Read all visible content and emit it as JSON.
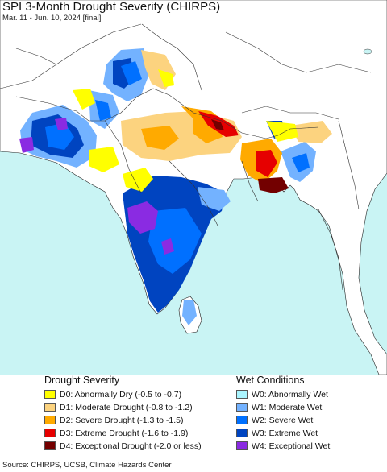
{
  "title": "SPI 3-Month Drought Severity (CHIRPS)",
  "subtitle": "Mar. 11 - Jun. 10, 2024 [final]",
  "colors": {
    "ocean": "#c9f4f4",
    "land_outside": "#ffffff",
    "normal": "#ffffff",
    "d0": "#ffff00",
    "d1": "#fcd37f",
    "d2": "#ffaa00",
    "d3": "#e60000",
    "d4": "#730000",
    "w0": "#aaf5ff",
    "w1": "#73b2ff",
    "w2": "#0070ff",
    "w3": "#0044c0",
    "w4": "#8a2be2"
  },
  "legend": {
    "drought": {
      "heading": "Drought Severity",
      "items": [
        {
          "label": "D0: Abnormally Dry (-0.5 to -0.7)",
          "color": "#ffff00"
        },
        {
          "label": "D1: Moderate Drought (-0.8 to -1.2)",
          "color": "#fcd37f"
        },
        {
          "label": "D2: Severe Drought (-1.3 to -1.5)",
          "color": "#ffaa00"
        },
        {
          "label": "D3: Extreme Drought (-1.6 to -1.9)",
          "color": "#e60000"
        },
        {
          "label": "D4: Exceptional Drought (-2.0 or less)",
          "color": "#730000"
        }
      ]
    },
    "wet": {
      "heading": "Wet Conditions",
      "items": [
        {
          "label": "W0: Abnormally Wet",
          "color": "#aaf5ff"
        },
        {
          "label": "W1: Moderate Wet",
          "color": "#73b2ff"
        },
        {
          "label": "W2: Severe Wet",
          "color": "#0070ff"
        },
        {
          "label": "W3: Extreme Wet",
          "color": "#0044c0"
        },
        {
          "label": "W4: Exceptional Wet",
          "color": "#8a2be2"
        }
      ]
    }
  },
  "source": "Source: CHIRPS, UCSB, Climate Hazards Center"
}
